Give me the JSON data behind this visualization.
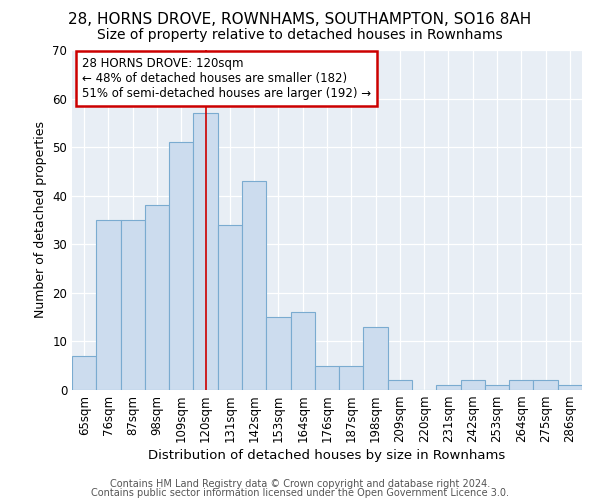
{
  "title1": "28, HORNS DROVE, ROWNHAMS, SOUTHAMPTON, SO16 8AH",
  "title2": "Size of property relative to detached houses in Rownhams",
  "xlabel": "Distribution of detached houses by size in Rownhams",
  "ylabel": "Number of detached properties",
  "categories": [
    "65sqm",
    "76sqm",
    "87sqm",
    "98sqm",
    "109sqm",
    "120sqm",
    "131sqm",
    "142sqm",
    "153sqm",
    "164sqm",
    "176sqm",
    "187sqm",
    "198sqm",
    "209sqm",
    "220sqm",
    "231sqm",
    "242sqm",
    "253sqm",
    "264sqm",
    "275sqm",
    "286sqm"
  ],
  "values": [
    7,
    35,
    35,
    38,
    51,
    57,
    34,
    43,
    15,
    16,
    5,
    5,
    13,
    2,
    0,
    1,
    2,
    1,
    2,
    2,
    1
  ],
  "bar_color": "#ccdcee",
  "bar_edge_color": "#7aabd0",
  "highlight_index": 5,
  "highlight_line_color": "#cc0000",
  "annotation_line1": "28 HORNS DROVE: 120sqm",
  "annotation_line2": "← 48% of detached houses are smaller (182)",
  "annotation_line3": "51% of semi-detached houses are larger (192) →",
  "annotation_box_color": "#ffffff",
  "annotation_box_edge": "#cc0000",
  "footer1": "Contains HM Land Registry data © Crown copyright and database right 2024.",
  "footer2": "Contains public sector information licensed under the Open Government Licence 3.0.",
  "background_color": "#ffffff",
  "plot_bg_color": "#e8eef5",
  "ylim": [
    0,
    70
  ],
  "title1_fontsize": 11,
  "title2_fontsize": 10,
  "xlabel_fontsize": 9.5,
  "ylabel_fontsize": 9,
  "tick_fontsize": 8.5,
  "footer_fontsize": 7
}
